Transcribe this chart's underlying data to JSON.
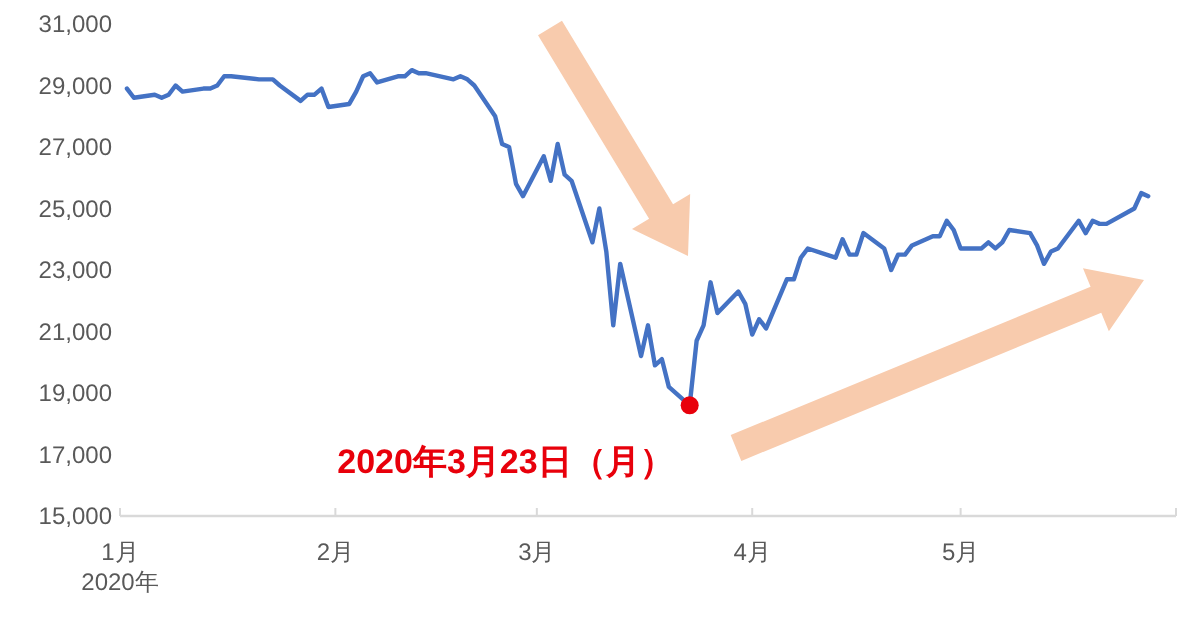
{
  "chart_data": {
    "type": "line",
    "ylim": [
      15000,
      31000
    ],
    "yticks": [
      {
        "value": 15000,
        "label": "15,000"
      },
      {
        "value": 17000,
        "label": "17,000"
      },
      {
        "value": 19000,
        "label": "19,000"
      },
      {
        "value": 21000,
        "label": "21,000"
      },
      {
        "value": 23000,
        "label": "23,000"
      },
      {
        "value": 25000,
        "label": "25,000"
      },
      {
        "value": 27000,
        "label": "27,000"
      },
      {
        "value": 29000,
        "label": "29,000"
      },
      {
        "value": 31000,
        "label": "31,000"
      }
    ],
    "xlim": [
      "2020-01-01",
      "2020-06-01"
    ],
    "xticks": [
      {
        "value": "2020-01-01",
        "label": "1月\n2020年"
      },
      {
        "value": "2020-02-01",
        "label": "2月"
      },
      {
        "value": "2020-03-01",
        "label": "3月"
      },
      {
        "value": "2020-04-01",
        "label": "4月"
      },
      {
        "value": "2020-05-01",
        "label": "5月"
      },
      {
        "value": "2020-06-01",
        "label": null
      }
    ],
    "grid": false,
    "marker": "none",
    "line_style": "solid",
    "series": [
      {
        "color": "#4472c4",
        "x": [
          "2020-01-02",
          "2020-01-03",
          "2020-01-06",
          "2020-01-07",
          "2020-01-08",
          "2020-01-09",
          "2020-01-10",
          "2020-01-13",
          "2020-01-14",
          "2020-01-15",
          "2020-01-16",
          "2020-01-17",
          "2020-01-21",
          "2020-01-22",
          "2020-01-23",
          "2020-01-24",
          "2020-01-27",
          "2020-01-28",
          "2020-01-29",
          "2020-01-30",
          "2020-01-31",
          "2020-02-03",
          "2020-02-04",
          "2020-02-05",
          "2020-02-06",
          "2020-02-07",
          "2020-02-10",
          "2020-02-11",
          "2020-02-12",
          "2020-02-13",
          "2020-02-14",
          "2020-02-18",
          "2020-02-19",
          "2020-02-20",
          "2020-02-21",
          "2020-02-24",
          "2020-02-25",
          "2020-02-26",
          "2020-02-27",
          "2020-02-28",
          "2020-03-02",
          "2020-03-03",
          "2020-03-04",
          "2020-03-05",
          "2020-03-06",
          "2020-03-09",
          "2020-03-10",
          "2020-03-11",
          "2020-03-12",
          "2020-03-13",
          "2020-03-16",
          "2020-03-17",
          "2020-03-18",
          "2020-03-19",
          "2020-03-20",
          "2020-03-23",
          "2020-03-24",
          "2020-03-25",
          "2020-03-26",
          "2020-03-27",
          "2020-03-30",
          "2020-03-31",
          "2020-04-01",
          "2020-04-02",
          "2020-04-03",
          "2020-04-06",
          "2020-04-07",
          "2020-04-08",
          "2020-04-09",
          "2020-04-13",
          "2020-04-14",
          "2020-04-15",
          "2020-04-16",
          "2020-04-17",
          "2020-04-20",
          "2020-04-21",
          "2020-04-22",
          "2020-04-23",
          "2020-04-24",
          "2020-04-27",
          "2020-04-28",
          "2020-04-29",
          "2020-04-30",
          "2020-05-01",
          "2020-05-04",
          "2020-05-05",
          "2020-05-06",
          "2020-05-07",
          "2020-05-08",
          "2020-05-11",
          "2020-05-12",
          "2020-05-13",
          "2020-05-14",
          "2020-05-15",
          "2020-05-18",
          "2020-05-19",
          "2020-05-20",
          "2020-05-21",
          "2020-05-22",
          "2020-05-26",
          "2020-05-27",
          "2020-05-28"
        ],
        "values": [
          28900,
          28600,
          28700,
          28600,
          28700,
          29000,
          28800,
          28900,
          28900,
          29000,
          29300,
          29300,
          29200,
          29200,
          29200,
          29000,
          28500,
          28700,
          28700,
          28900,
          28300,
          28400,
          28800,
          29300,
          29400,
          29100,
          29300,
          29300,
          29500,
          29400,
          29400,
          29200,
          29300,
          29200,
          29000,
          28000,
          27100,
          27000,
          25800,
          25400,
          26700,
          25900,
          27100,
          26100,
          25900,
          23900,
          25000,
          23600,
          21200,
          23200,
          20200,
          21200,
          19900,
          20100,
          19200,
          18600,
          20700,
          21200,
          22600,
          21600,
          22300,
          21900,
          20900,
          21400,
          21100,
          22700,
          22700,
          23400,
          23700,
          23400,
          24000,
          23500,
          23500,
          24200,
          23700,
          23000,
          23500,
          23500,
          23800,
          24100,
          24100,
          24600,
          24300,
          23700,
          23700,
          23900,
          23700,
          23900,
          24300,
          24200,
          23800,
          23200,
          23600,
          23700,
          24600,
          24200,
          24600,
          24500,
          24500,
          25000,
          25500,
          25400
        ]
      },
      {
        "type": "scatter",
        "color": "#e8000b",
        "marker": "circle",
        "x": [
          "2020-03-23"
        ],
        "values": [
          18600
        ]
      }
    ],
    "annotations": [
      {
        "text": "2020年3月23日（月）",
        "x": "2020-03-23",
        "y": 18600
      }
    ]
  }
}
